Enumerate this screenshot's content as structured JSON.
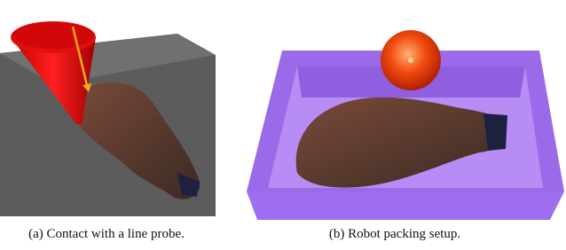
{
  "figures": [
    {
      "caption": "(a) Contact with a line probe."
    },
    {
      "caption": "(b) Robot packing setup."
    }
  ]
}
